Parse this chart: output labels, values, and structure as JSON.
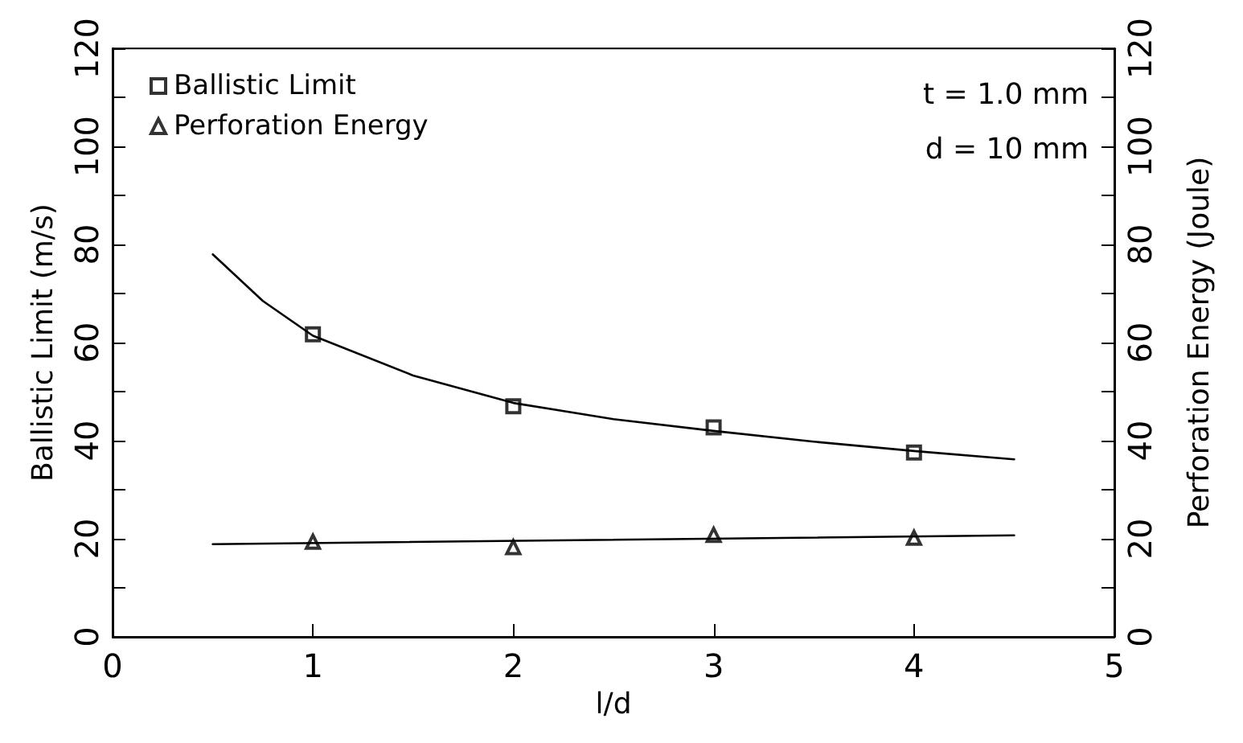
{
  "chart_data": {
    "type": "scatter",
    "xlabel": "l/d",
    "ylabel": "Ballistic Limit (m/s)",
    "y2label": "Perforation Energy (Joule)",
    "x": [
      1,
      2,
      3,
      4
    ],
    "series": [
      {
        "name": "Ballistic Limit",
        "color": "#000000",
        "marker": "square",
        "values": [
          61.7,
          47.0,
          42.7,
          37.6
        ]
      },
      {
        "name": "Perforation Energy",
        "color": "#000000",
        "marker": "triangle",
        "values": [
          19.4,
          18.3,
          20.8,
          20.2
        ]
      },
      {
        "type": "line",
        "color": "#000000",
        "marker": "none",
        "x": [
          0.5,
          0.75,
          1,
          1.5,
          2,
          2.5,
          3,
          3.5,
          4,
          4.5
        ],
        "values": [
          78,
          68.5,
          61.4,
          53.3,
          47.7,
          44.4,
          42.0,
          39.8,
          37.9,
          36.2
        ]
      },
      {
        "type": "line",
        "color": "#000000",
        "marker": "none",
        "x": [
          0.5,
          4.5
        ],
        "values": [
          18.9,
          20.7
        ]
      }
    ],
    "xlim": [
      0,
      5
    ],
    "xticks": [
      0,
      1,
      2,
      3,
      4,
      5
    ],
    "ylim": [
      0,
      120
    ],
    "yticks": [
      0,
      {
        "value": 10,
        "label": null
      },
      20,
      {
        "value": 30,
        "label": null
      },
      40,
      {
        "value": 50,
        "label": null
      },
      60,
      {
        "value": 70,
        "label": null
      },
      80,
      {
        "value": 90,
        "label": null
      },
      100,
      {
        "value": 110,
        "label": null
      },
      120
    ],
    "y2lim": [
      0,
      120
    ],
    "y2ticks": [
      0,
      {
        "value": 10,
        "label": null
      },
      20,
      {
        "value": 30,
        "label": null
      },
      40,
      {
        "value": 50,
        "label": null
      },
      60,
      {
        "value": 70,
        "label": null
      },
      80,
      {
        "value": 90,
        "label": null
      },
      100,
      {
        "value": 110,
        "label": null
      },
      120
    ],
    "legend": "top left",
    "grid": false,
    "annotations": [
      "t = 1.0 mm",
      "d = 10 mm"
    ]
  }
}
